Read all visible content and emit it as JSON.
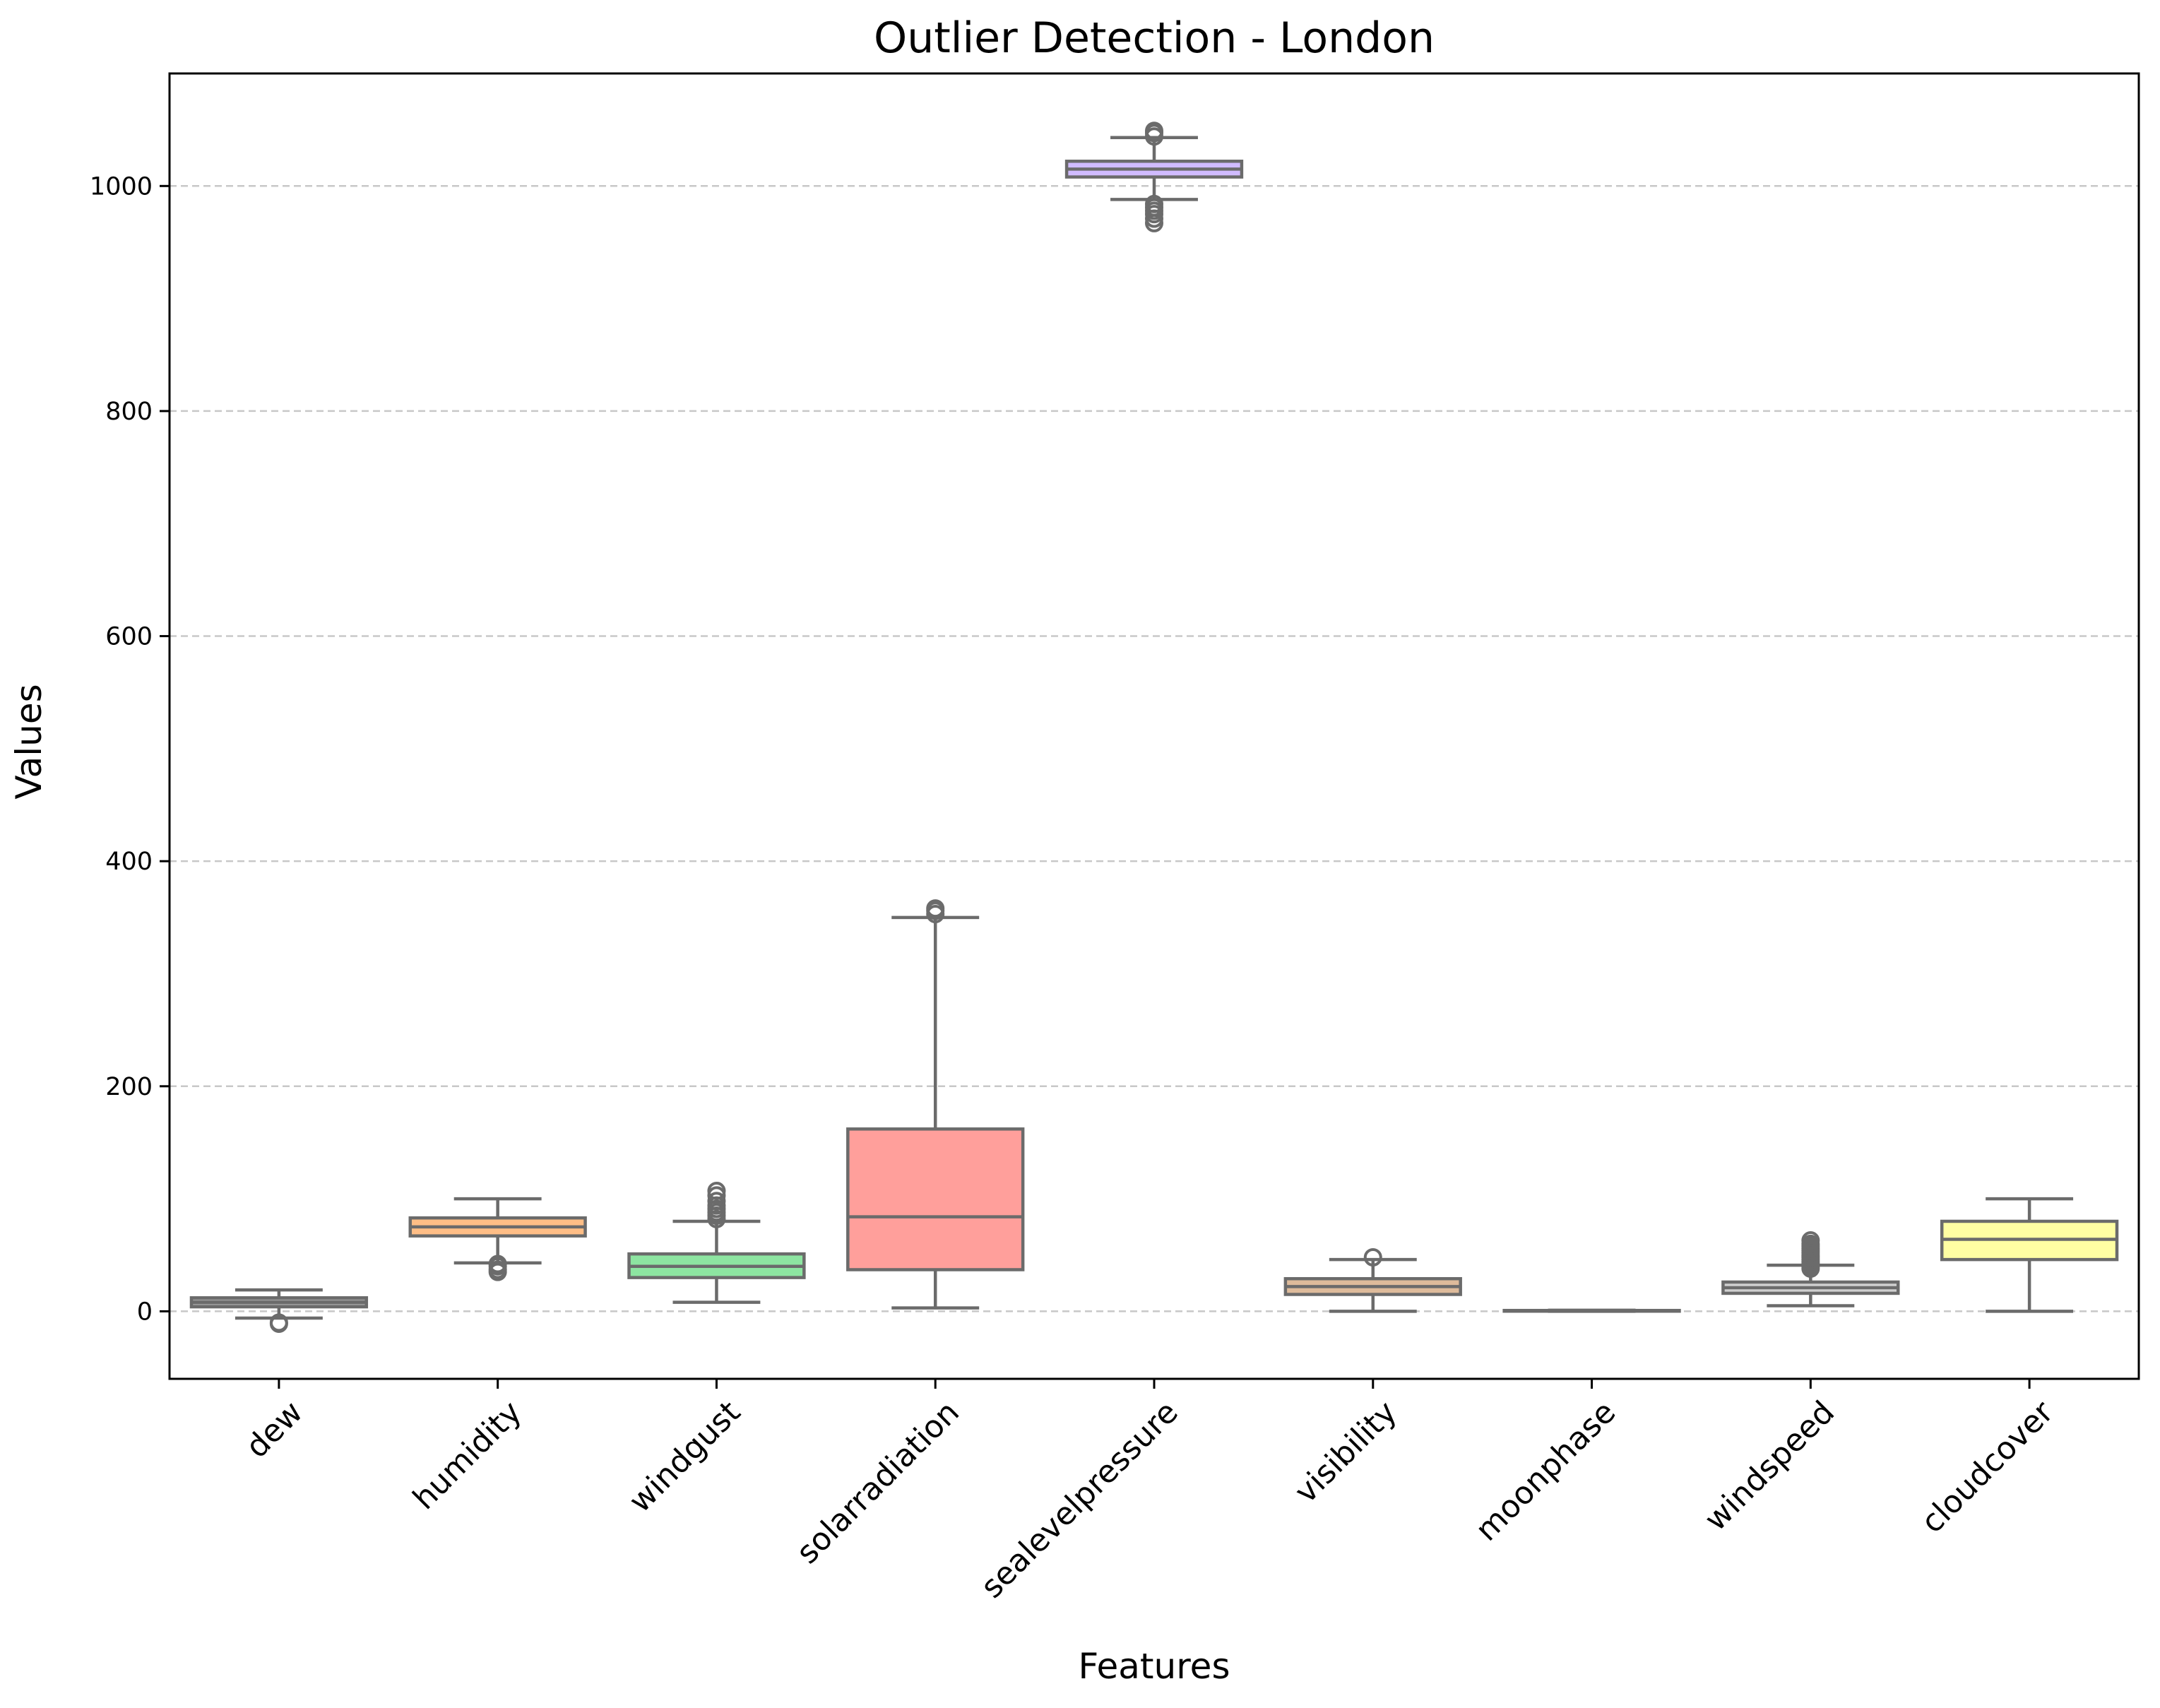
{
  "chart_data": {
    "type": "box",
    "title": "Outlier Detection - London",
    "xlabel": "Features",
    "ylabel": "Values",
    "ylim": [
      -60,
      1100
    ],
    "yticks": [
      0,
      200,
      400,
      600,
      800,
      1000
    ],
    "grid": "horizontal dashed",
    "categories": [
      "dew",
      "humidity",
      "windgust",
      "solarradiation",
      "sealevelpressure",
      "visibility",
      "moonphase",
      "windspeed",
      "cloudcover"
    ],
    "boxes": [
      {
        "name": "dew",
        "color": "#999999",
        "whisker_low": -6,
        "q1": 4,
        "median": 8,
        "q3": 12,
        "whisker_high": 19,
        "outliers": [
          -10,
          -11
        ]
      },
      {
        "name": "humidity",
        "color": "#ffbe86",
        "whisker_low": 43,
        "q1": 67,
        "median": 75,
        "q3": 83,
        "whisker_high": 100,
        "outliers": [
          35,
          37,
          40,
          42
        ]
      },
      {
        "name": "windgust",
        "color": "#8de5a1",
        "whisker_low": 8,
        "q1": 30,
        "median": 40,
        "q3": 51,
        "whisker_high": 80,
        "outliers": [
          82,
          85,
          88,
          91,
          94,
          98,
          103,
          107
        ]
      },
      {
        "name": "solarradiation",
        "color": "#ff9f9b",
        "whisker_low": 3,
        "q1": 37,
        "median": 84,
        "q3": 162,
        "whisker_high": 350,
        "outliers": [
          353,
          356,
          358
        ]
      },
      {
        "name": "sealevelpressure",
        "color": "#d0bbff",
        "whisker_low": 988,
        "q1": 1008,
        "median": 1015,
        "q3": 1022,
        "whisker_high": 1043,
        "outliers": [
          967,
          971,
          975,
          978,
          981,
          984,
          1044,
          1047,
          1049
        ]
      },
      {
        "name": "visibility",
        "color": "#debb9b",
        "whisker_low": 0,
        "q1": 15,
        "median": 22,
        "q3": 29,
        "whisker_high": 46,
        "outliers": [
          48
        ]
      },
      {
        "name": "moonphase",
        "color": "#fab0e4",
        "whisker_low": 0,
        "q1": 0.25,
        "median": 0.5,
        "q3": 0.75,
        "whisker_high": 1,
        "outliers": []
      },
      {
        "name": "windspeed",
        "color": "#cfcfcf",
        "whisker_low": 5,
        "q1": 16,
        "median": 21,
        "q3": 26,
        "whisker_high": 41,
        "outliers": [
          38,
          40,
          42,
          44,
          46,
          48,
          50,
          52,
          54,
          56,
          58,
          60,
          63
        ]
      },
      {
        "name": "cloudcover",
        "color": "#fffea3",
        "whisker_low": 0,
        "q1": 46,
        "median": 64,
        "q3": 80,
        "whisker_high": 100,
        "outliers": []
      }
    ]
  }
}
